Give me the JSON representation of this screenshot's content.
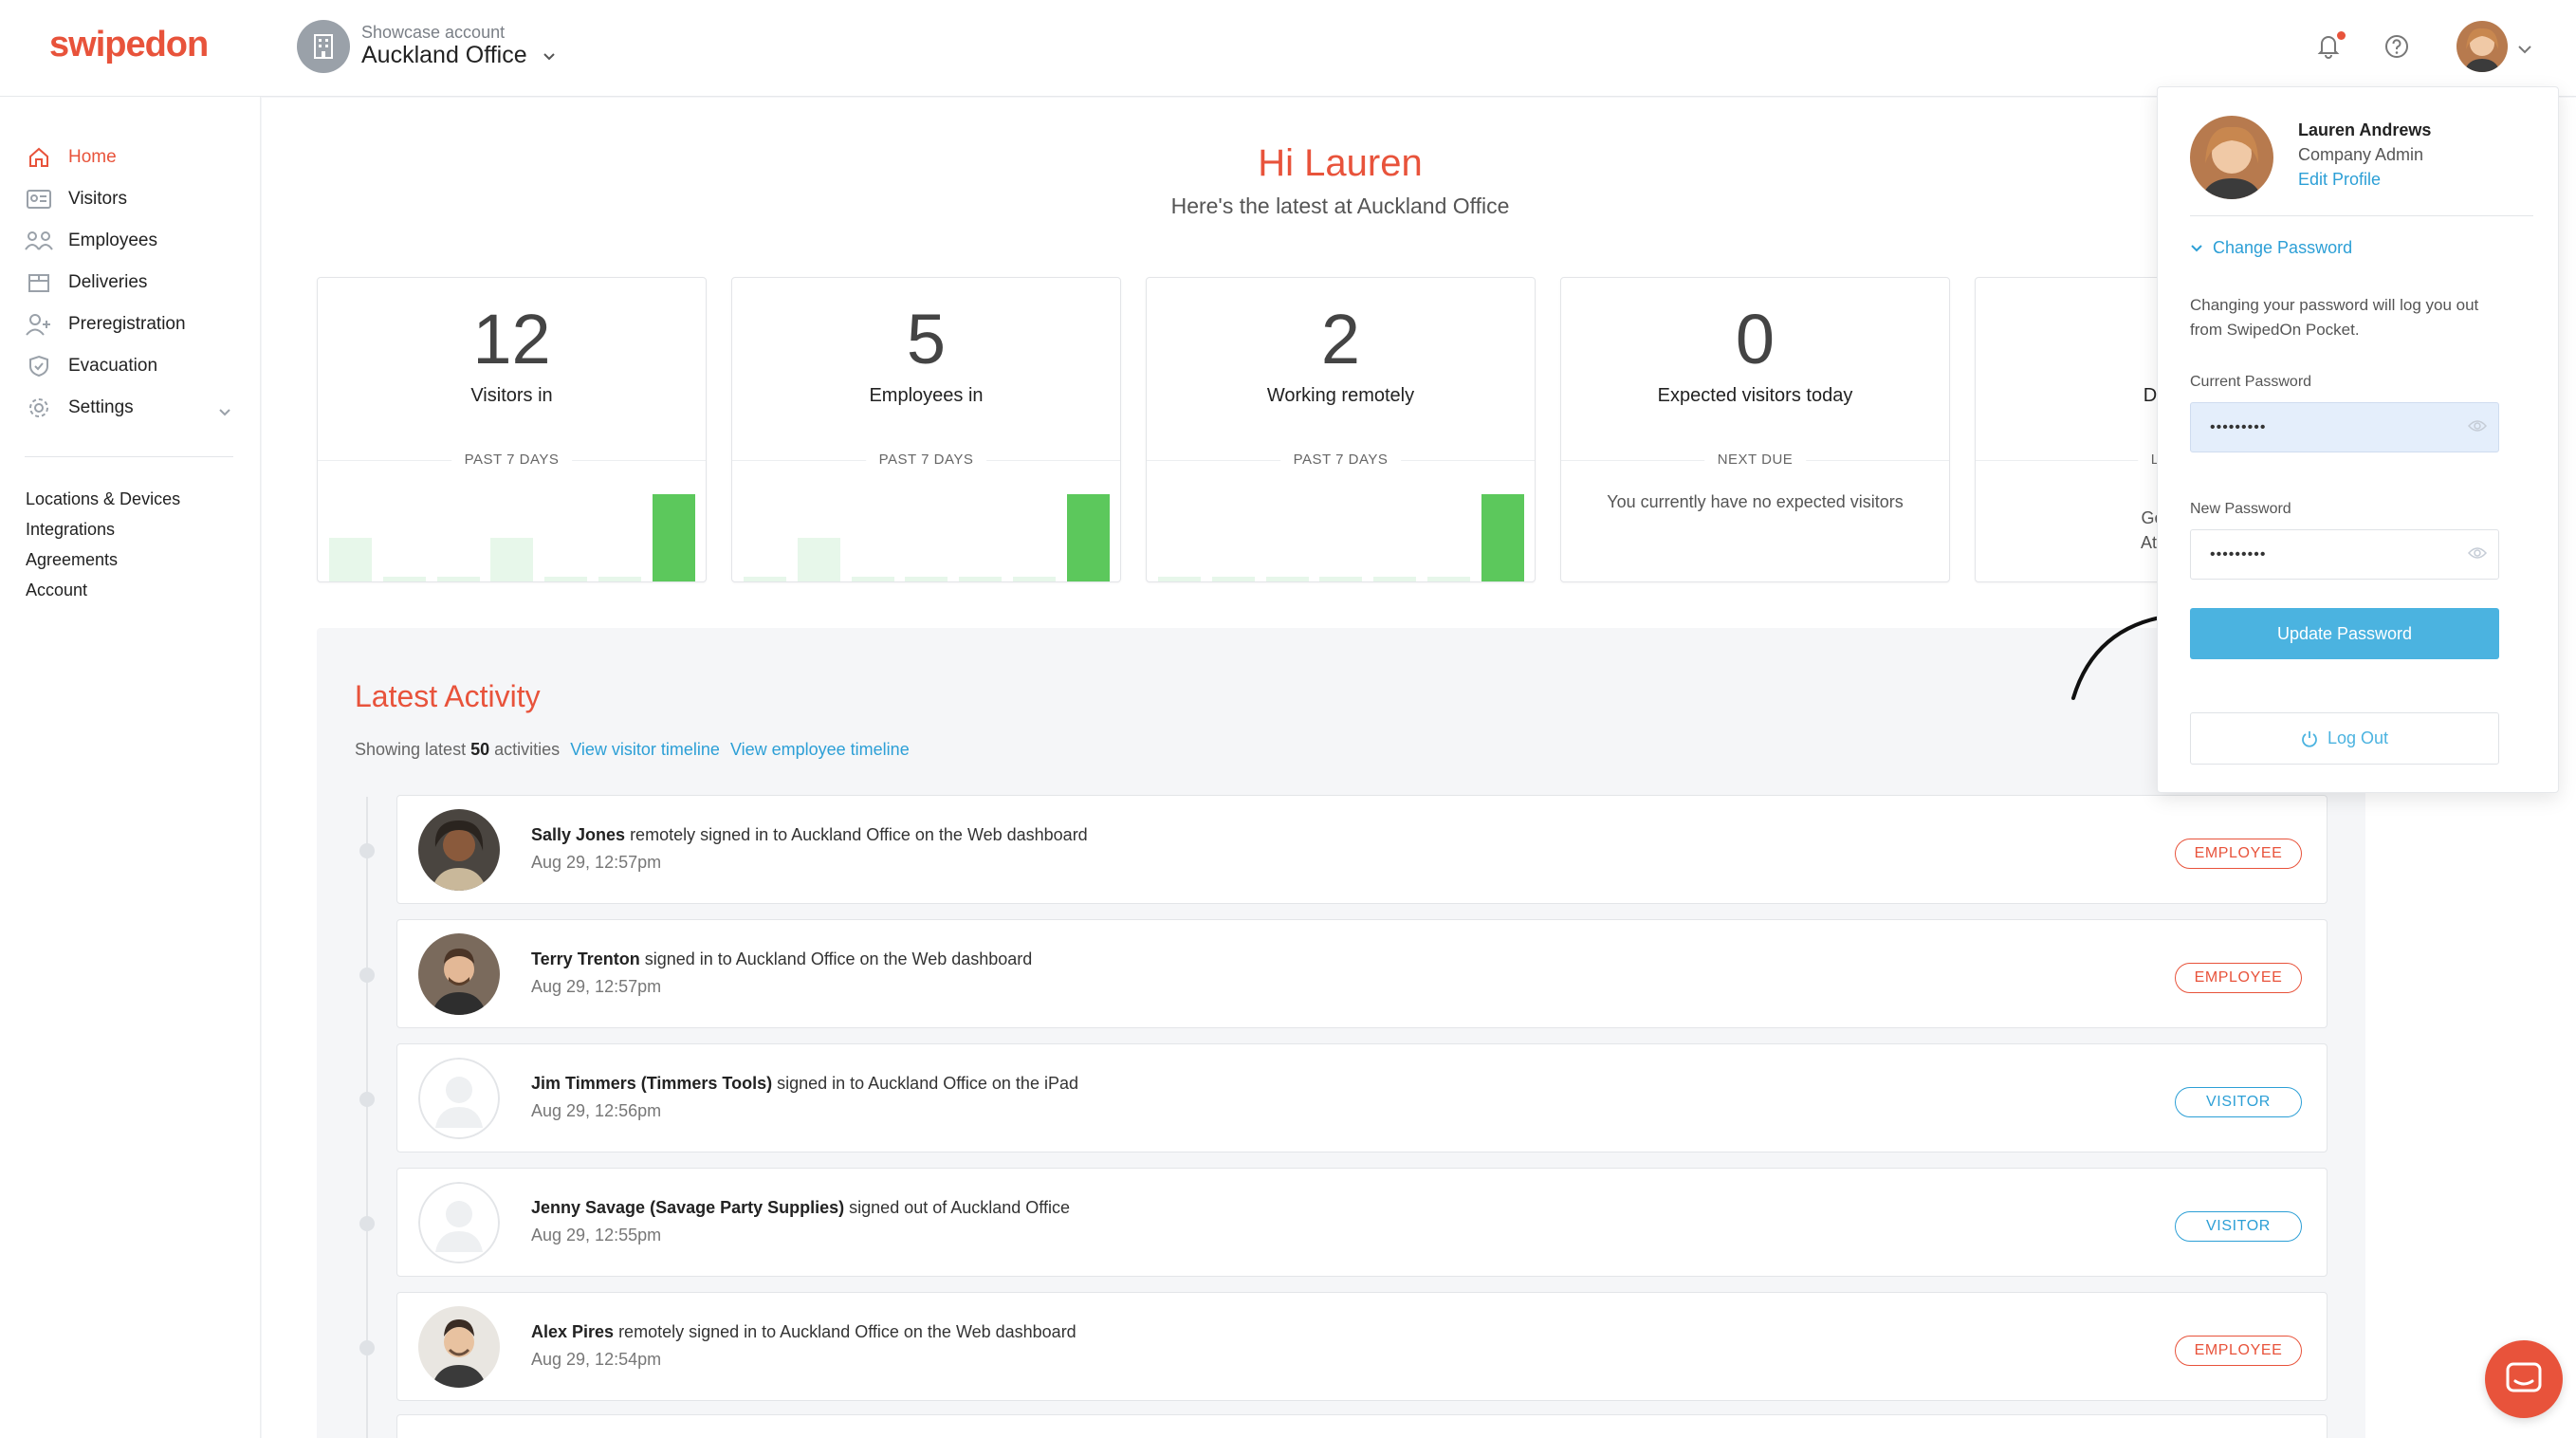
{
  "app": {
    "logo_text": "swipedon"
  },
  "account": {
    "sub_label": "Showcase account",
    "name": "Auckland Office"
  },
  "sidebar": {
    "items": [
      {
        "label": "Home",
        "icon": "home-icon"
      },
      {
        "label": "Visitors",
        "icon": "visitor-card-icon"
      },
      {
        "label": "Employees",
        "icon": "employees-icon"
      },
      {
        "label": "Deliveries",
        "icon": "package-icon"
      },
      {
        "label": "Preregistration",
        "icon": "add-person-icon"
      },
      {
        "label": "Evacuation",
        "icon": "shield-icon"
      },
      {
        "label": "Settings",
        "icon": "gear-icon"
      }
    ],
    "links": [
      {
        "label": "Locations & Devices"
      },
      {
        "label": "Integrations"
      },
      {
        "label": "Agreements"
      },
      {
        "label": "Account"
      }
    ]
  },
  "greeting": {
    "title": "Hi Lauren",
    "subtitle": "Here's the latest at Auckland Office"
  },
  "cards": [
    {
      "number": "12",
      "label": "Visitors in",
      "period": "PAST 7 DAYS",
      "bars": [
        0.5,
        0.05,
        0.05,
        0.5,
        0.05,
        0.05,
        1.0
      ]
    },
    {
      "number": "5",
      "label": "Employees in",
      "period": "PAST 7 DAYS",
      "bars": [
        0.05,
        0.5,
        0.05,
        0.05,
        0.05,
        0.05,
        1.0
      ]
    },
    {
      "number": "2",
      "label": "Working remotely",
      "period": "PAST 7 DAYS",
      "bars": [
        0.05,
        0.05,
        0.05,
        0.05,
        0.05,
        0.05,
        1.0
      ]
    },
    {
      "number": "0",
      "label": "Expected visitors today",
      "period": "NEXT DUE",
      "message": "You currently have no expected visitors"
    },
    {
      "number": "",
      "label": "Delive",
      "period": "LAST",
      "message_lines": [
        "A",
        "Genera",
        "At Auck"
      ]
    }
  ],
  "activity": {
    "title": "Latest Activity",
    "info_prefix": "Showing latest",
    "info_count": "50",
    "info_suffix": "activities",
    "link_visitor": "View visitor timeline",
    "link_employee": "View employee timeline",
    "rows": [
      {
        "name": "Sally Jones",
        "action": " remotely signed in to Auckland Office on the Web dashboard",
        "time": "Aug 29, 12:57pm",
        "badge": "EMPLOYEE",
        "type": "emp"
      },
      {
        "name": "Terry Trenton",
        "action": " signed in to Auckland Office on the Web dashboard",
        "time": "Aug 29, 12:57pm",
        "badge": "EMPLOYEE",
        "type": "emp"
      },
      {
        "name": "Jim Timmers (Timmers Tools)",
        "action": " signed in to Auckland Office on the iPad",
        "time": "Aug 29, 12:56pm",
        "badge": "VISITOR",
        "type": "vis"
      },
      {
        "name": "Jenny Savage (Savage Party Supplies)",
        "action": " signed out of Auckland Office",
        "time": "Aug 29, 12:55pm",
        "badge": "VISITOR",
        "type": "vis"
      },
      {
        "name": "Alex Pires",
        "action": " remotely signed in to Auckland Office on the Web dashboard",
        "time": "Aug 29, 12:54pm",
        "badge": "EMPLOYEE",
        "type": "emp"
      }
    ]
  },
  "profile": {
    "name": "Lauren Andrews",
    "role": "Company Admin",
    "edit_link": "Edit Profile",
    "change_password": "Change Password",
    "note": "Changing your password will log you out from SwipedOn Pocket.",
    "current_label": "Current Password",
    "current_value": "•••••••••",
    "new_label": "New Password",
    "new_value": "•••••••••",
    "update_button": "Update Password",
    "logout_button": "Log Out"
  },
  "colors": {
    "brand": "#e8533b",
    "link": "#2c9fd6",
    "button": "#4bb3e0",
    "bar_high": "#5cc85c",
    "bar_low": "#e7f7ea"
  }
}
